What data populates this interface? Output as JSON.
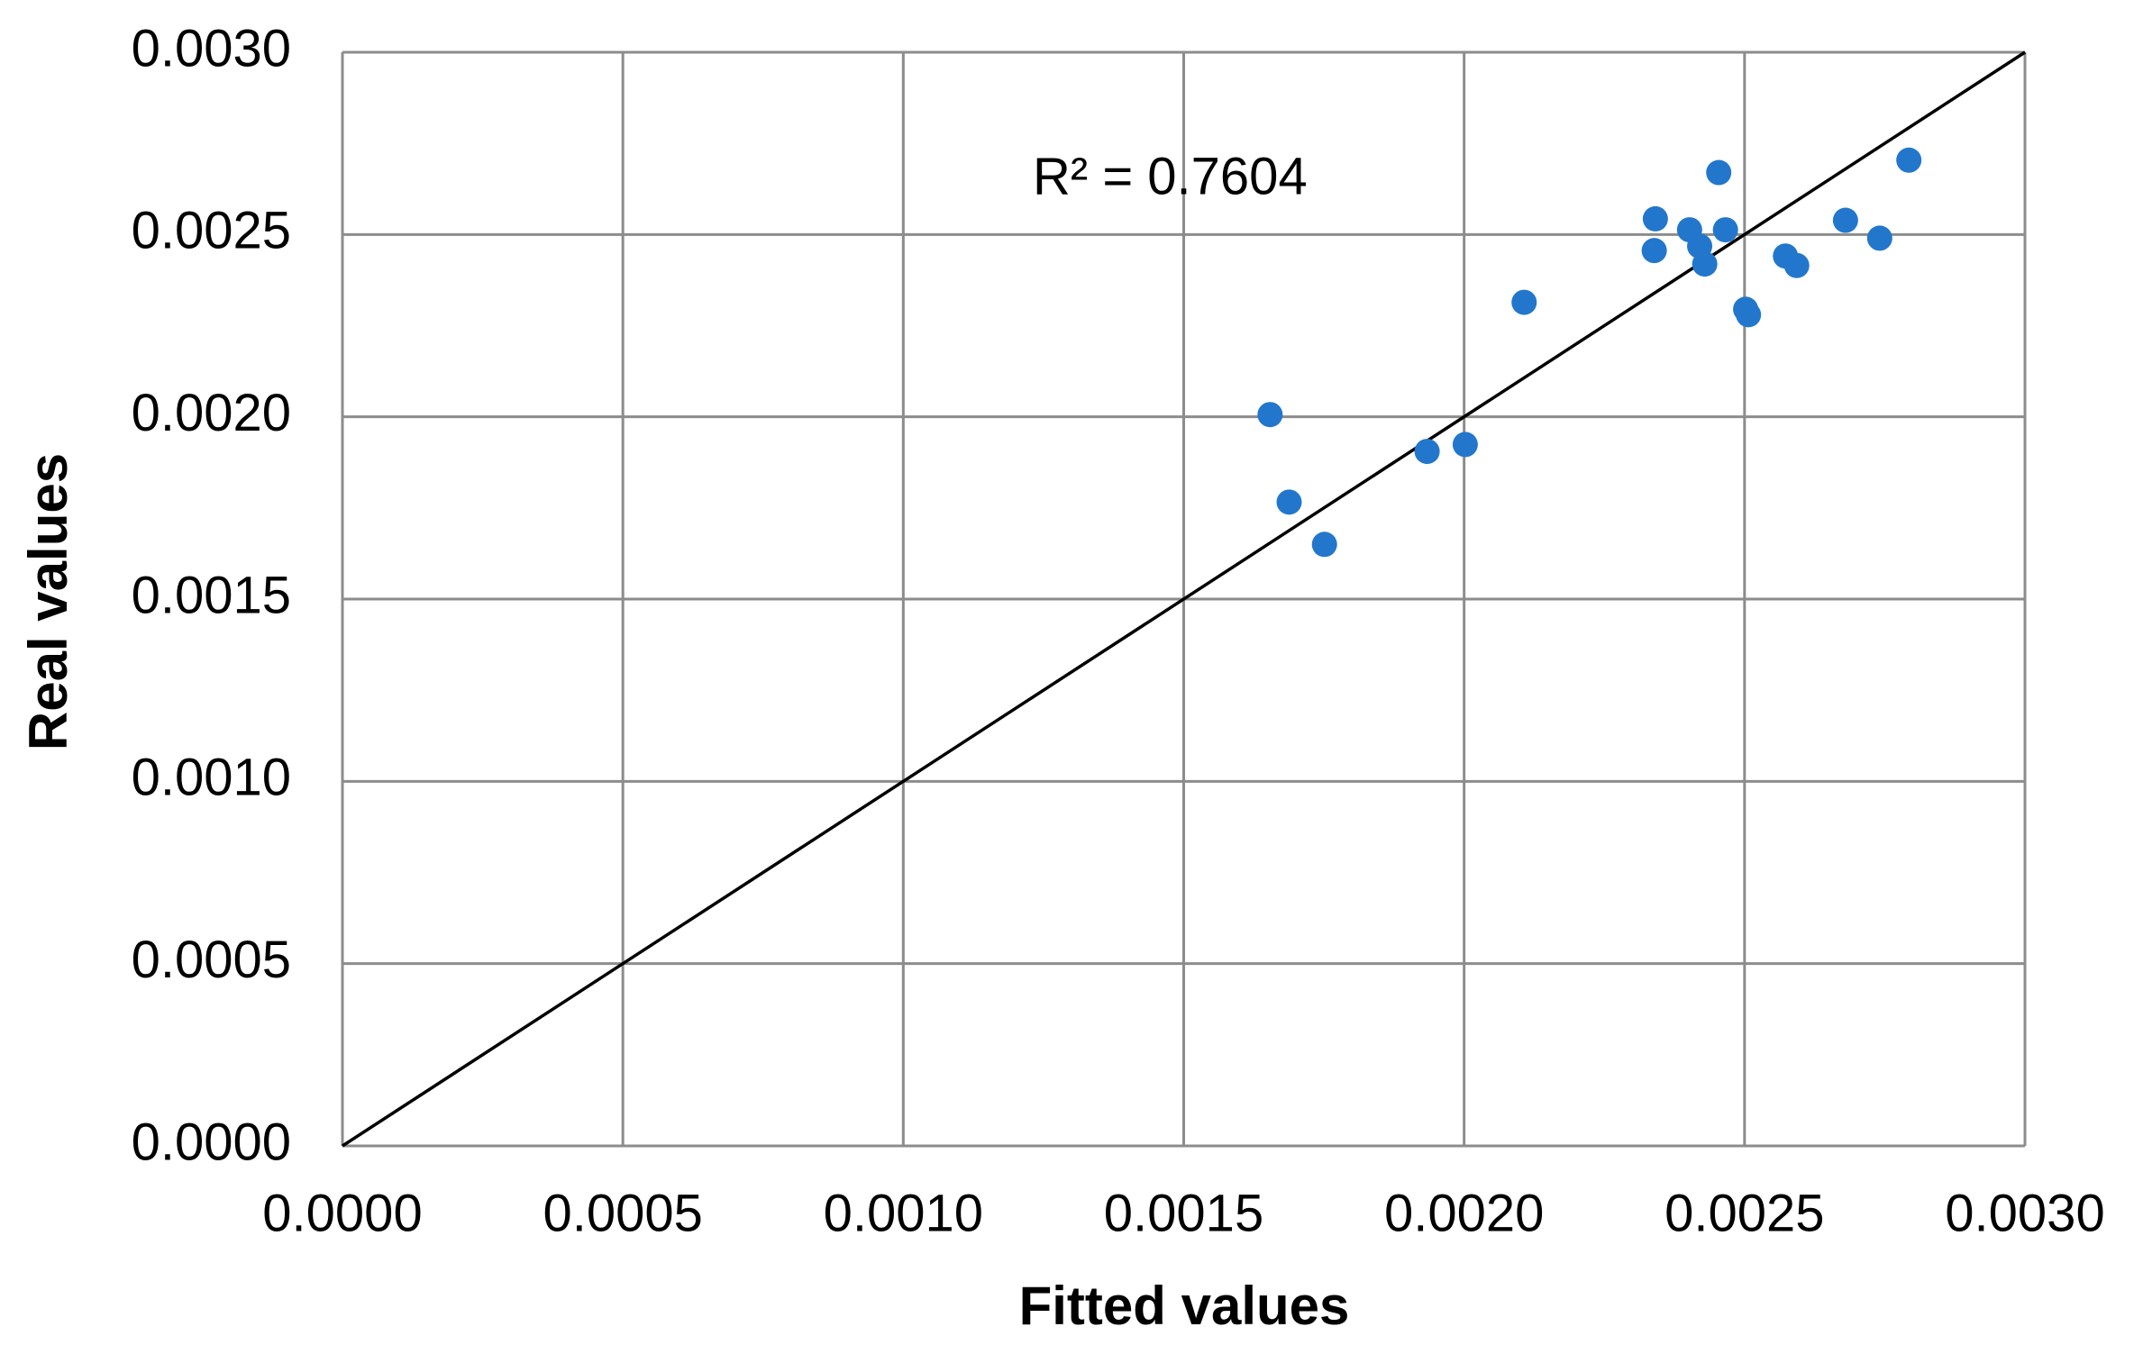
{
  "chart_data": {
    "type": "scatter",
    "x_label": "Fitted values",
    "y_label": "Real values",
    "annotation": "R² = 0.7604",
    "grid": true,
    "xlim": [
      0,
      0.003
    ],
    "ylim": [
      0,
      0.003
    ],
    "xticks": [
      {
        "value": 0,
        "label": "0.0000"
      },
      {
        "value": 0.0005,
        "label": "0.0005"
      },
      {
        "value": 0.001,
        "label": "0.0010"
      },
      {
        "value": 0.0015,
        "label": "0.0015"
      },
      {
        "value": 0.002,
        "label": "0.0020"
      },
      {
        "value": 0.0025,
        "label": "0.0025"
      },
      {
        "value": 0.003,
        "label": "0.0030"
      }
    ],
    "yticks": [
      {
        "value": 0,
        "label": "0.0000"
      },
      {
        "value": 0.0005,
        "label": "0.0005"
      },
      {
        "value": 0.001,
        "label": "0.0010"
      },
      {
        "value": 0.0015,
        "label": "0.0015"
      },
      {
        "value": 0.002,
        "label": "0.0020"
      },
      {
        "value": 0.0025,
        "label": "0.0025"
      },
      {
        "value": 0.003,
        "label": "0.0030"
      }
    ],
    "reference_line": {
      "color": "#000000",
      "x": [
        0,
        0.003
      ],
      "y": [
        0,
        0.003
      ]
    },
    "series": [
      {
        "color": "#2277cc",
        "x": [
          0.001654,
          0.001688,
          0.001751,
          0.001934,
          0.002002,
          0.002107,
          0.002339,
          0.002341,
          0.002402,
          0.00242,
          0.002429,
          0.002454,
          0.002466,
          0.002502,
          0.002507,
          0.002573,
          0.002593,
          0.00268,
          0.002741,
          0.002793
        ],
        "values": [
          0.002006,
          0.001766,
          0.00165,
          0.001905,
          0.001924,
          0.002314,
          0.002456,
          0.002543,
          0.002513,
          0.002468,
          0.002419,
          0.00267,
          0.002513,
          0.002295,
          0.00228,
          0.002441,
          0.002415,
          0.002539,
          0.00249,
          0.002704
        ]
      }
    ]
  }
}
